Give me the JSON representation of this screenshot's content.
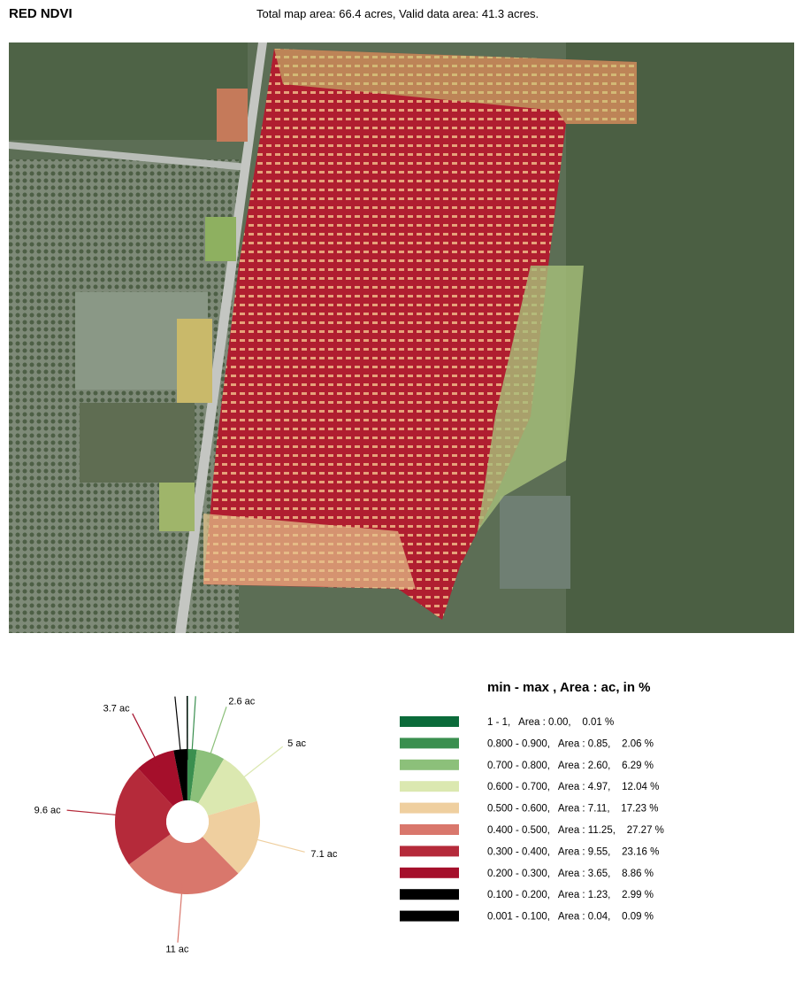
{
  "header": {
    "title": "RED NDVI",
    "summary": "Total map area: 66.4 acres, Valid data area: 41.3 acres."
  },
  "chart_data": {
    "type": "pie",
    "legend_title": "min - max ,  Area : ac, in %",
    "categories": [
      "1 - 1,   Area : 0.00,    0.01 %",
      "0.800 - 0.900,   Area : 0.85,    2.06 %",
      "0.700 - 0.800,   Area : 2.60,    6.29 %",
      "0.600 - 0.700,   Area : 4.97,    12.04 %",
      "0.500 - 0.600,   Area : 7.11,    17.23 %",
      "0.400 - 0.500,   Area : 11.25,    27.27 %",
      "0.300 - 0.400,   Area : 9.55,    23.16 %",
      "0.200 - 0.300,   Area : 3.65,    8.86 %",
      "0.100 - 0.200,   Area : 1.23,    2.99 %",
      "0.001 - 0.100,   Area : 0.04,    0.09 %"
    ],
    "values": [
      0.0,
      0.85,
      2.6,
      4.97,
      7.11,
      11.25,
      9.55,
      3.65,
      1.23,
      0.04
    ],
    "value_labels": [
      null,
      null,
      "2.6 ac",
      "5 ac",
      "7.1 ac",
      "11 ac",
      "9.6 ac",
      "3.7 ac",
      null,
      null
    ],
    "colors": [
      "#0b6b3a",
      "#3a8f4f",
      "#8cc07a",
      "#dbe8b0",
      "#efcf9f",
      "#d9776c",
      "#b52a3a",
      "#a50f2b",
      "#000000",
      "#000000"
    ]
  }
}
